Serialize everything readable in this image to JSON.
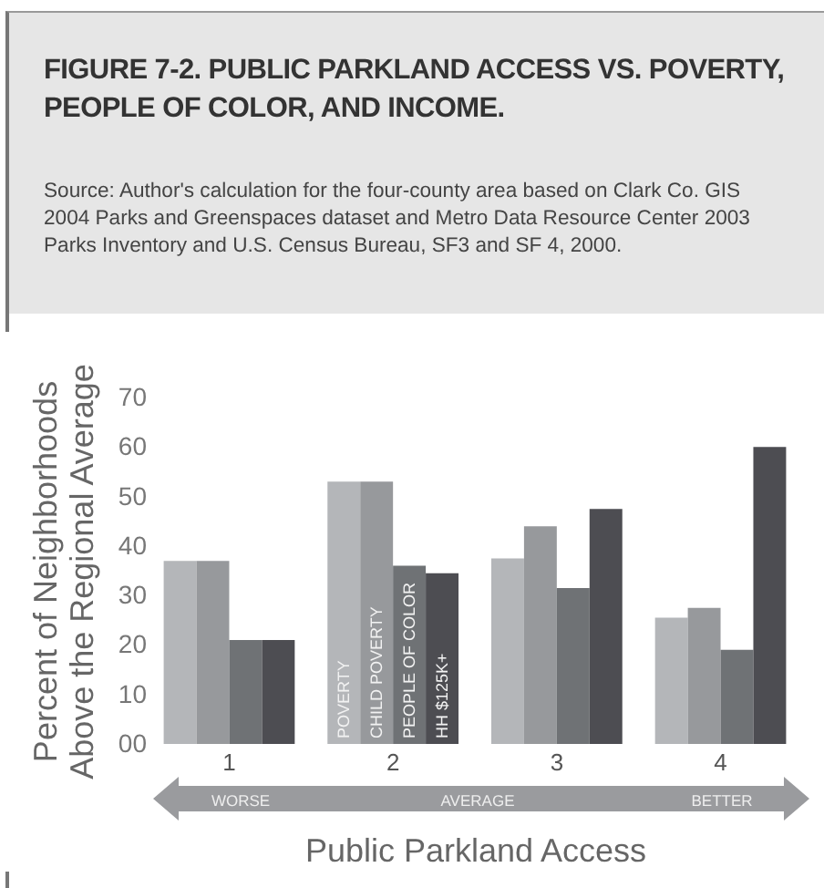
{
  "chart_data": {
    "type": "bar",
    "title": "FIGURE 7-2. PUBLIC PARKLAND ACCESS VS. POVERTY, PEOPLE OF COLOR, AND INCOME.",
    "xlabel": "Public Parkland Access",
    "ylabel": "Percent of Neighborhoods\nAbove the Regional Average",
    "annotations": [
      "Source: Author's calculation for the four-county area based on Clark Co. GIS 2004 Parks and Greenspaces dataset and Metro Data Resource Center 2003 Parks Inventory and U.S. Census Bureau, SF3 and SF 4, 2000.",
      "WORSE",
      "AVERAGE",
      "BETTER"
    ],
    "categories": [
      "1",
      "2",
      "3",
      "4"
    ],
    "series": [
      {
        "name": "POVERTY",
        "color": "#b4b6b9",
        "values": [
          37,
          53,
          37.5,
          25.5
        ]
      },
      {
        "name": "CHILD POVERTY",
        "color": "#97999c",
        "values": [
          37,
          53,
          44,
          27.5
        ]
      },
      {
        "name": "PEOPLE OF COLOR",
        "color": "#6f7275",
        "values": [
          21,
          36,
          31.5,
          19
        ]
      },
      {
        "name": "HH $125K+",
        "color": "#4d4d52",
        "values": [
          21,
          34.5,
          47.5,
          60
        ]
      }
    ],
    "ylim": [
      0,
      70
    ],
    "yticks": [
      {
        "value": 0,
        "label": "00"
      },
      10,
      20,
      30,
      40,
      50,
      60,
      70
    ],
    "grid": false,
    "legend": false
  }
}
